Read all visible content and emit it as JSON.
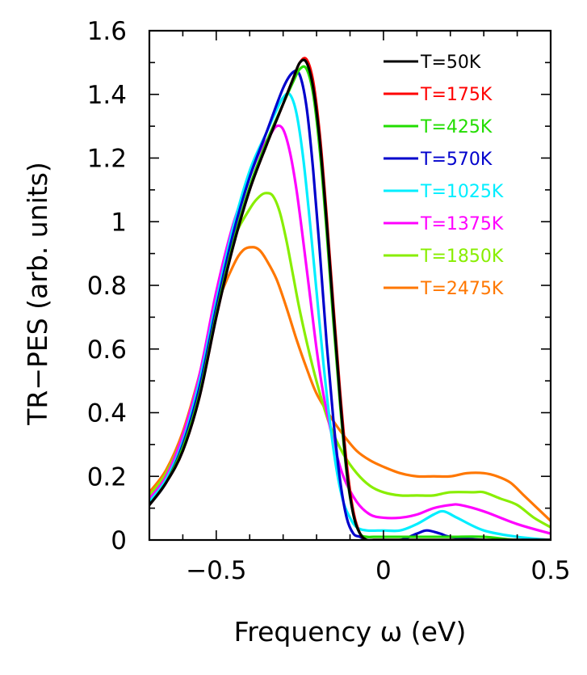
{
  "chart_data": {
    "type": "line",
    "xlabel": "Frequency ω (eV)",
    "ylabel": "TR−PES (arb. units)",
    "xlim": [
      -0.7,
      0.5
    ],
    "ylim": [
      0,
      1.6
    ],
    "x_ticks": [
      -0.5,
      0,
      0.5
    ],
    "x_tick_labels": [
      "−0.5",
      "0",
      "0.5"
    ],
    "y_ticks": [
      0,
      0.2,
      0.4,
      0.6,
      0.8,
      1.0,
      1.2,
      1.4,
      1.6
    ],
    "y_tick_labels": [
      "0",
      "0.2",
      "0.4",
      "0.6",
      "0.8",
      "1",
      "1.2",
      "1.4",
      "1.6"
    ],
    "grid": false,
    "legend_position": "top-right",
    "series": [
      {
        "name": "T=50K",
        "color": "#000000",
        "x": [
          -0.7,
          -0.65,
          -0.6,
          -0.55,
          -0.5,
          -0.45,
          -0.4,
          -0.35,
          -0.3,
          -0.27,
          -0.25,
          -0.23,
          -0.21,
          -0.19,
          -0.17,
          -0.15,
          -0.13,
          -0.11,
          -0.09,
          -0.07,
          -0.05,
          -0.03,
          0.0,
          0.1,
          0.2,
          0.3,
          0.4,
          0.5
        ],
        "y": [
          0.11,
          0.18,
          0.28,
          0.45,
          0.7,
          0.92,
          1.1,
          1.24,
          1.37,
          1.45,
          1.5,
          1.5,
          1.42,
          1.25,
          1.0,
          0.72,
          0.45,
          0.22,
          0.08,
          0.02,
          0.0,
          0.0,
          0.0,
          0.0,
          0.0,
          0.0,
          0.0,
          0.0
        ]
      },
      {
        "name": "T=175K",
        "color": "#ff0000",
        "x": [
          -0.7,
          -0.65,
          -0.6,
          -0.55,
          -0.5,
          -0.45,
          -0.4,
          -0.35,
          -0.3,
          -0.27,
          -0.25,
          -0.23,
          -0.21,
          -0.19,
          -0.17,
          -0.15,
          -0.13,
          -0.11,
          -0.09,
          -0.07,
          -0.05,
          -0.03,
          0.0,
          0.1,
          0.2,
          0.3,
          0.4,
          0.5
        ],
        "y": [
          0.11,
          0.18,
          0.28,
          0.45,
          0.7,
          0.92,
          1.1,
          1.24,
          1.37,
          1.45,
          1.5,
          1.51,
          1.44,
          1.27,
          1.02,
          0.74,
          0.47,
          0.24,
          0.09,
          0.02,
          0.0,
          0.0,
          0.0,
          0.0,
          0.0,
          0.0,
          0.0,
          0.0
        ]
      },
      {
        "name": "T=425K",
        "color": "#22dd00",
        "x": [
          -0.7,
          -0.65,
          -0.6,
          -0.55,
          -0.5,
          -0.45,
          -0.4,
          -0.35,
          -0.3,
          -0.27,
          -0.25,
          -0.23,
          -0.21,
          -0.19,
          -0.17,
          -0.15,
          -0.13,
          -0.11,
          -0.09,
          -0.07,
          -0.05,
          -0.03,
          0.0,
          0.1,
          0.2,
          0.3,
          0.4,
          0.5
        ],
        "y": [
          0.11,
          0.18,
          0.29,
          0.46,
          0.71,
          0.93,
          1.11,
          1.25,
          1.37,
          1.44,
          1.48,
          1.48,
          1.4,
          1.22,
          0.97,
          0.69,
          0.43,
          0.21,
          0.08,
          0.02,
          0.01,
          0.01,
          0.01,
          0.01,
          0.01,
          0.01,
          0.0,
          0.0
        ]
      },
      {
        "name": "T=570K",
        "color": "#0000cc",
        "x": [
          -0.7,
          -0.65,
          -0.6,
          -0.55,
          -0.5,
          -0.45,
          -0.4,
          -0.35,
          -0.3,
          -0.27,
          -0.25,
          -0.23,
          -0.21,
          -0.19,
          -0.17,
          -0.15,
          -0.13,
          -0.11,
          -0.09,
          -0.07,
          -0.05,
          0.0,
          0.05,
          0.1,
          0.13,
          0.17,
          0.2,
          0.3,
          0.4,
          0.5
        ],
        "y": [
          0.11,
          0.18,
          0.3,
          0.48,
          0.73,
          0.96,
          1.14,
          1.28,
          1.42,
          1.47,
          1.46,
          1.36,
          1.16,
          0.9,
          0.62,
          0.38,
          0.19,
          0.07,
          0.02,
          0.01,
          0.0,
          0.0,
          0.0,
          0.02,
          0.03,
          0.02,
          0.01,
          0.0,
          0.0,
          0.0
        ]
      },
      {
        "name": "T=1025K",
        "color": "#00eeff",
        "x": [
          -0.7,
          -0.65,
          -0.6,
          -0.55,
          -0.5,
          -0.45,
          -0.4,
          -0.35,
          -0.32,
          -0.3,
          -0.28,
          -0.26,
          -0.24,
          -0.22,
          -0.2,
          -0.18,
          -0.16,
          -0.14,
          -0.12,
          -0.1,
          -0.08,
          -0.05,
          0.0,
          0.05,
          0.1,
          0.15,
          0.18,
          0.22,
          0.3,
          0.4,
          0.5
        ],
        "y": [
          0.12,
          0.19,
          0.31,
          0.5,
          0.75,
          0.98,
          1.16,
          1.28,
          1.35,
          1.39,
          1.4,
          1.34,
          1.2,
          1.0,
          0.78,
          0.56,
          0.37,
          0.22,
          0.12,
          0.07,
          0.04,
          0.03,
          0.03,
          0.03,
          0.05,
          0.08,
          0.09,
          0.07,
          0.03,
          0.01,
          0.0
        ]
      },
      {
        "name": "T=1375K",
        "color": "#ff00ff",
        "x": [
          -0.7,
          -0.65,
          -0.6,
          -0.55,
          -0.5,
          -0.45,
          -0.4,
          -0.37,
          -0.34,
          -0.32,
          -0.3,
          -0.28,
          -0.26,
          -0.24,
          -0.22,
          -0.2,
          -0.18,
          -0.15,
          -0.12,
          -0.08,
          -0.04,
          0.0,
          0.05,
          0.1,
          0.15,
          0.2,
          0.23,
          0.3,
          0.4,
          0.5
        ],
        "y": [
          0.13,
          0.2,
          0.33,
          0.52,
          0.78,
          0.99,
          1.14,
          1.22,
          1.27,
          1.3,
          1.29,
          1.22,
          1.1,
          0.94,
          0.77,
          0.6,
          0.46,
          0.31,
          0.2,
          0.12,
          0.08,
          0.07,
          0.07,
          0.08,
          0.1,
          0.11,
          0.11,
          0.09,
          0.05,
          0.02
        ]
      },
      {
        "name": "T=1850K",
        "color": "#88ee00",
        "x": [
          -0.7,
          -0.65,
          -0.6,
          -0.55,
          -0.5,
          -0.45,
          -0.4,
          -0.37,
          -0.35,
          -0.33,
          -0.31,
          -0.29,
          -0.27,
          -0.25,
          -0.22,
          -0.19,
          -0.16,
          -0.12,
          -0.08,
          -0.04,
          0.0,
          0.05,
          0.1,
          0.15,
          0.2,
          0.27,
          0.3,
          0.35,
          0.4,
          0.45,
          0.5
        ],
        "y": [
          0.14,
          0.21,
          0.33,
          0.52,
          0.76,
          0.94,
          1.04,
          1.08,
          1.09,
          1.08,
          1.03,
          0.94,
          0.83,
          0.72,
          0.58,
          0.46,
          0.36,
          0.27,
          0.21,
          0.17,
          0.15,
          0.14,
          0.14,
          0.14,
          0.15,
          0.15,
          0.15,
          0.13,
          0.11,
          0.07,
          0.04
        ]
      },
      {
        "name": "T=2475K",
        "color": "#ff7700",
        "x": [
          -0.7,
          -0.65,
          -0.6,
          -0.55,
          -0.5,
          -0.45,
          -0.42,
          -0.39,
          -0.37,
          -0.35,
          -0.32,
          -0.29,
          -0.26,
          -0.23,
          -0.2,
          -0.16,
          -0.12,
          -0.08,
          -0.04,
          0.0,
          0.05,
          0.1,
          0.15,
          0.2,
          0.25,
          0.3,
          0.34,
          0.38,
          0.42,
          0.46,
          0.5
        ],
        "y": [
          0.15,
          0.22,
          0.34,
          0.52,
          0.73,
          0.86,
          0.91,
          0.92,
          0.91,
          0.88,
          0.82,
          0.73,
          0.63,
          0.54,
          0.46,
          0.39,
          0.33,
          0.28,
          0.25,
          0.23,
          0.21,
          0.2,
          0.2,
          0.2,
          0.21,
          0.21,
          0.2,
          0.18,
          0.14,
          0.1,
          0.06
        ]
      }
    ]
  }
}
